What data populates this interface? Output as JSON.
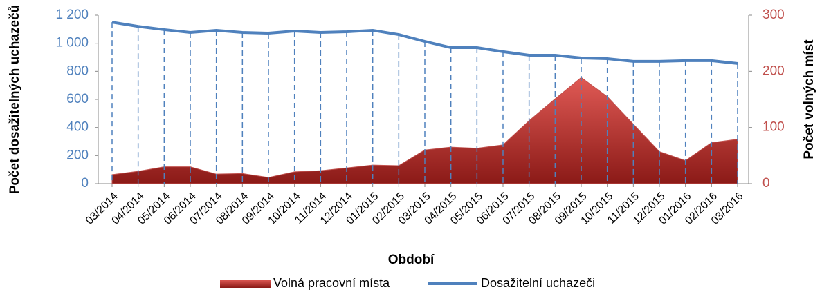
{
  "chart_data": {
    "type": "area-line",
    "x_label": "Období",
    "y_label": "Počet dosažitelných uchazečů",
    "y2_label": "Počet volných míst",
    "categories": [
      "03/2014",
      "04/2014",
      "05/2014",
      "06/2014",
      "07/2014",
      "08/2014",
      "09/2014",
      "10/2014",
      "11/2014",
      "12/2014",
      "01/2015",
      "02/2015",
      "03/2015",
      "04/2015",
      "05/2015",
      "06/2015",
      "07/2015",
      "08/2015",
      "09/2015",
      "10/2015",
      "11/2015",
      "12/2015",
      "01/2016",
      "02/2016",
      "03/2016"
    ],
    "series": [
      {
        "name": "Volná pracovní místa",
        "color": "#c0504d",
        "axis": "y2",
        "kind": "area",
        "values": [
          16,
          22,
          30,
          30,
          17,
          18,
          11,
          21,
          23,
          28,
          33,
          32,
          60,
          65,
          63,
          69,
          112,
          151,
          189,
          155,
          106,
          57,
          41,
          73,
          79
        ]
      },
      {
        "name": "Dosažitelní uchazeči",
        "color": "#4f81bd",
        "kind": "line",
        "values": [
          1150,
          1120,
          1097,
          1077,
          1092,
          1077,
          1072,
          1087,
          1077,
          1082,
          1092,
          1062,
          1013,
          969,
          969,
          940,
          915,
          915,
          895,
          890,
          871,
          871,
          876,
          876,
          856
        ]
      }
    ],
    "ylim": [
      0,
      1200
    ],
    "yticks": [
      0,
      200,
      400,
      600,
      800,
      {
        "value": 1000,
        "label": "1 000"
      },
      {
        "value": 1200,
        "label": "1 200"
      }
    ],
    "y2lim": [
      0,
      300
    ],
    "y2ticks": [
      0,
      100,
      200,
      300
    ],
    "drop_lines": true
  }
}
